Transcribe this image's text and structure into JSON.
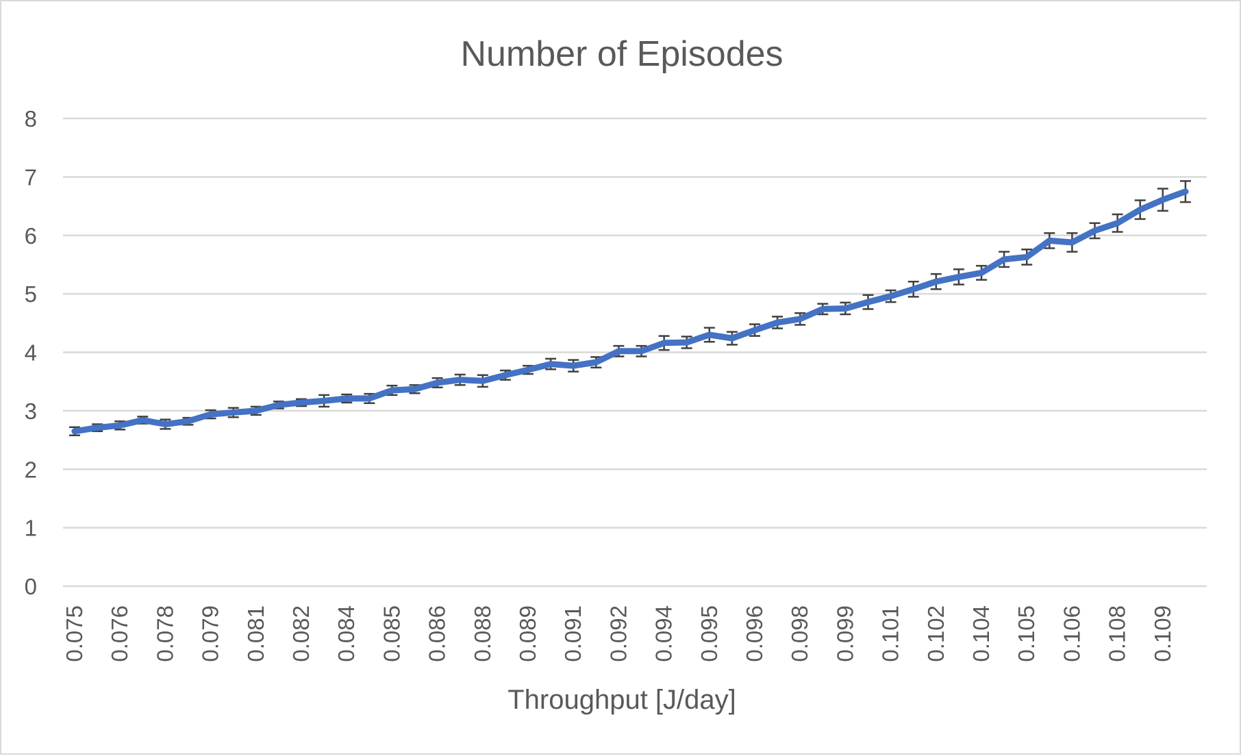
{
  "chart_data": {
    "type": "line",
    "title": "Number of Episodes",
    "xlabel": "Throughput [J/day]",
    "ylabel": "",
    "ylim": [
      0,
      8
    ],
    "yticks": [
      0,
      1,
      2,
      3,
      4,
      5,
      6,
      7,
      8
    ],
    "grid": true,
    "legend": "none",
    "x_tick_labels": [
      "0.075",
      "0.076",
      "0.078",
      "0.079",
      "0.081",
      "0.082",
      "0.084",
      "0.085",
      "0.086",
      "0.088",
      "0.089",
      "0.091",
      "0.092",
      "0.094",
      "0.095",
      "0.096",
      "0.098",
      "0.099",
      "0.101",
      "0.102",
      "0.104",
      "0.105",
      "0.106",
      "0.108",
      "0.109"
    ],
    "series": [
      {
        "name": "Number of Episodes",
        "color": "#4472c4",
        "values": [
          2.65,
          2.71,
          2.75,
          2.84,
          2.77,
          2.82,
          2.94,
          2.97,
          3.0,
          3.1,
          3.14,
          3.17,
          3.21,
          3.21,
          3.35,
          3.37,
          3.48,
          3.53,
          3.51,
          3.61,
          3.7,
          3.8,
          3.77,
          3.83,
          4.02,
          4.02,
          4.16,
          4.17,
          4.3,
          4.24,
          4.38,
          4.51,
          4.57,
          4.74,
          4.75,
          4.86,
          4.96,
          5.08,
          5.21,
          5.29,
          5.36,
          5.59,
          5.63,
          5.91,
          5.88,
          6.08,
          6.21,
          6.44,
          6.61,
          6.75
        ],
        "error": [
          0.07,
          0.06,
          0.07,
          0.06,
          0.08,
          0.06,
          0.07,
          0.08,
          0.07,
          0.06,
          0.06,
          0.1,
          0.07,
          0.08,
          0.08,
          0.07,
          0.08,
          0.09,
          0.1,
          0.08,
          0.07,
          0.09,
          0.1,
          0.09,
          0.09,
          0.09,
          0.12,
          0.1,
          0.12,
          0.11,
          0.1,
          0.1,
          0.1,
          0.09,
          0.1,
          0.12,
          0.1,
          0.13,
          0.13,
          0.13,
          0.12,
          0.13,
          0.13,
          0.13,
          0.16,
          0.13,
          0.15,
          0.16,
          0.19,
          0.18
        ]
      }
    ]
  }
}
